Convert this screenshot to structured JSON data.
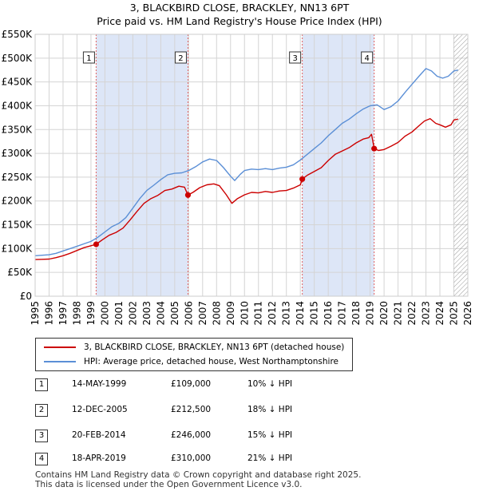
{
  "title": {
    "line1": "3, BLACKBIRD CLOSE, BRACKLEY, NN13 6PT",
    "line2": "Price paid vs. HM Land Registry's House Price Index (HPI)"
  },
  "colors": {
    "property_line": "#cc0000",
    "hpi_line": "#5b8fd6",
    "shade": "#dde6f7",
    "grid": "#d4d4d4",
    "sale_vline": "#e06060",
    "hatch": "#9a9a9a"
  },
  "chart_data": {
    "type": "line",
    "title": "Price paid vs. HM Land Registry's House Price Index (HPI)",
    "xlabel": "",
    "ylabel": "",
    "xlim": [
      1995,
      2026
    ],
    "ylim": [
      0,
      550000
    ],
    "x_ticks": [
      1995,
      1996,
      1997,
      1998,
      1999,
      2000,
      2001,
      2002,
      2003,
      2004,
      2005,
      2006,
      2007,
      2008,
      2009,
      2010,
      2011,
      2012,
      2013,
      2014,
      2015,
      2016,
      2017,
      2018,
      2019,
      2020,
      2021,
      2022,
      2023,
      2024,
      2025,
      2026
    ],
    "y_ticks": [
      {
        "value": 0,
        "label": "£0"
      },
      {
        "value": 50000,
        "label": "£50K"
      },
      {
        "value": 100000,
        "label": "£100K"
      },
      {
        "value": 150000,
        "label": "£150K"
      },
      {
        "value": 200000,
        "label": "£200K"
      },
      {
        "value": 250000,
        "label": "£250K"
      },
      {
        "value": 300000,
        "label": "£300K"
      },
      {
        "value": 350000,
        "label": "£350K"
      },
      {
        "value": 400000,
        "label": "£400K"
      },
      {
        "value": 450000,
        "label": "£450K"
      },
      {
        "value": 500000,
        "label": "£500K"
      },
      {
        "value": 550000,
        "label": "£550K"
      }
    ],
    "shaded_ranges": [
      [
        1999.37,
        2005.95
      ],
      [
        2014.14,
        2019.29
      ]
    ],
    "hatched_from": 2025.0,
    "series": [
      {
        "name": "3, BLACKBIRD CLOSE, BRACKLEY, NN13 6PT (detached house)",
        "color": "#cc0000",
        "x": [
          1995.0,
          1995.5,
          1996.0,
          1996.5,
          1997.0,
          1997.5,
          1998.0,
          1998.5,
          1999.0,
          1999.37,
          1999.8,
          2000.3,
          2000.8,
          2001.3,
          2001.8,
          2002.3,
          2002.8,
          2003.3,
          2003.8,
          2004.3,
          2004.8,
          2005.3,
          2005.7,
          2005.95,
          2006.3,
          2006.8,
          2007.3,
          2007.8,
          2008.2,
          2008.7,
          2009.1,
          2009.5,
          2010.0,
          2010.5,
          2011.0,
          2011.5,
          2012.0,
          2012.5,
          2013.0,
          2013.5,
          2014.0,
          2014.14,
          2014.5,
          2015.0,
          2015.5,
          2016.0,
          2016.5,
          2017.0,
          2017.5,
          2018.0,
          2018.5,
          2018.9,
          2019.1,
          2019.29,
          2019.6,
          2020.0,
          2020.5,
          2021.0,
          2021.5,
          2022.0,
          2022.5,
          2022.9,
          2023.3,
          2023.7,
          2024.0,
          2024.4,
          2024.8,
          2025.0,
          2025.3
        ],
        "y": [
          77000,
          77500,
          78000,
          81000,
          85000,
          90000,
          96000,
          102000,
          106000,
          109000,
          118000,
          128000,
          134000,
          143000,
          160000,
          178000,
          195000,
          205000,
          212000,
          222000,
          225000,
          231000,
          229000,
          212500,
          218000,
          228000,
          234000,
          236000,
          232000,
          213000,
          195000,
          205000,
          213000,
          218000,
          217000,
          220000,
          218000,
          221000,
          222000,
          227000,
          234000,
          246000,
          254000,
          262000,
          270000,
          285000,
          298000,
          305000,
          312000,
          322000,
          330000,
          333000,
          340000,
          310000,
          306000,
          308000,
          315000,
          323000,
          336000,
          345000,
          358000,
          368000,
          373000,
          363000,
          360000,
          355000,
          360000,
          370000,
          372000
        ]
      },
      {
        "name": "HPI: Average price, detached house, West Northamptonshire",
        "color": "#5b8fd6",
        "x": [
          1995.0,
          1995.5,
          1996.0,
          1996.5,
          1997.0,
          1997.5,
          1998.0,
          1998.5,
          1999.0,
          1999.5,
          2000.0,
          2000.5,
          2001.0,
          2001.5,
          2002.0,
          2002.5,
          2003.0,
          2003.5,
          2004.0,
          2004.5,
          2005.0,
          2005.5,
          2006.0,
          2006.5,
          2007.0,
          2007.5,
          2008.0,
          2008.5,
          2009.0,
          2009.3,
          2009.7,
          2010.0,
          2010.5,
          2011.0,
          2011.5,
          2012.0,
          2012.5,
          2013.0,
          2013.5,
          2014.0,
          2014.5,
          2015.0,
          2015.5,
          2016.0,
          2016.5,
          2017.0,
          2017.5,
          2018.0,
          2018.5,
          2019.0,
          2019.5,
          2020.0,
          2020.5,
          2021.0,
          2021.5,
          2022.0,
          2022.5,
          2023.0,
          2023.4,
          2023.8,
          2024.2,
          2024.6,
          2025.0,
          2025.3
        ],
        "y": [
          85000,
          86000,
          87000,
          90000,
          95000,
          100000,
          105000,
          110000,
          115000,
          124000,
          135000,
          146000,
          153000,
          165000,
          185000,
          205000,
          222000,
          233000,
          245000,
          255000,
          258000,
          259000,
          264000,
          272000,
          282000,
          288000,
          285000,
          270000,
          252000,
          243000,
          256000,
          264000,
          267000,
          266000,
          268000,
          266000,
          269000,
          271000,
          276000,
          286000,
          298000,
          310000,
          322000,
          337000,
          350000,
          363000,
          372000,
          383000,
          393000,
          400000,
          402000,
          392000,
          398000,
          410000,
          428000,
          445000,
          462000,
          478000,
          473000,
          462000,
          458000,
          462000,
          473000,
          475000
        ]
      }
    ],
    "sale_markers": [
      {
        "num": "1",
        "x": 1999.37,
        "y": 109000
      },
      {
        "num": "2",
        "x": 2005.95,
        "y": 212500
      },
      {
        "num": "3",
        "x": 2014.14,
        "y": 246000
      },
      {
        "num": "4",
        "x": 2019.29,
        "y": 310000
      }
    ]
  },
  "legend": {
    "property": "3, BLACKBIRD CLOSE, BRACKLEY, NN13 6PT (detached house)",
    "hpi": "HPI: Average price, detached house, West Northamptonshire"
  },
  "sales": [
    {
      "num": "1",
      "date": "14-MAY-1999",
      "price": "£109,000",
      "hpi": "10% ↓ HPI"
    },
    {
      "num": "2",
      "date": "12-DEC-2005",
      "price": "£212,500",
      "hpi": "18% ↓ HPI"
    },
    {
      "num": "3",
      "date": "20-FEB-2014",
      "price": "£246,000",
      "hpi": "15% ↓ HPI"
    },
    {
      "num": "4",
      "date": "18-APR-2019",
      "price": "£310,000",
      "hpi": "21% ↓ HPI"
    }
  ],
  "footer": {
    "line1": "Contains HM Land Registry data © Crown copyright and database right 2025.",
    "line2": "This data is licensed under the Open Government Licence v3.0."
  }
}
